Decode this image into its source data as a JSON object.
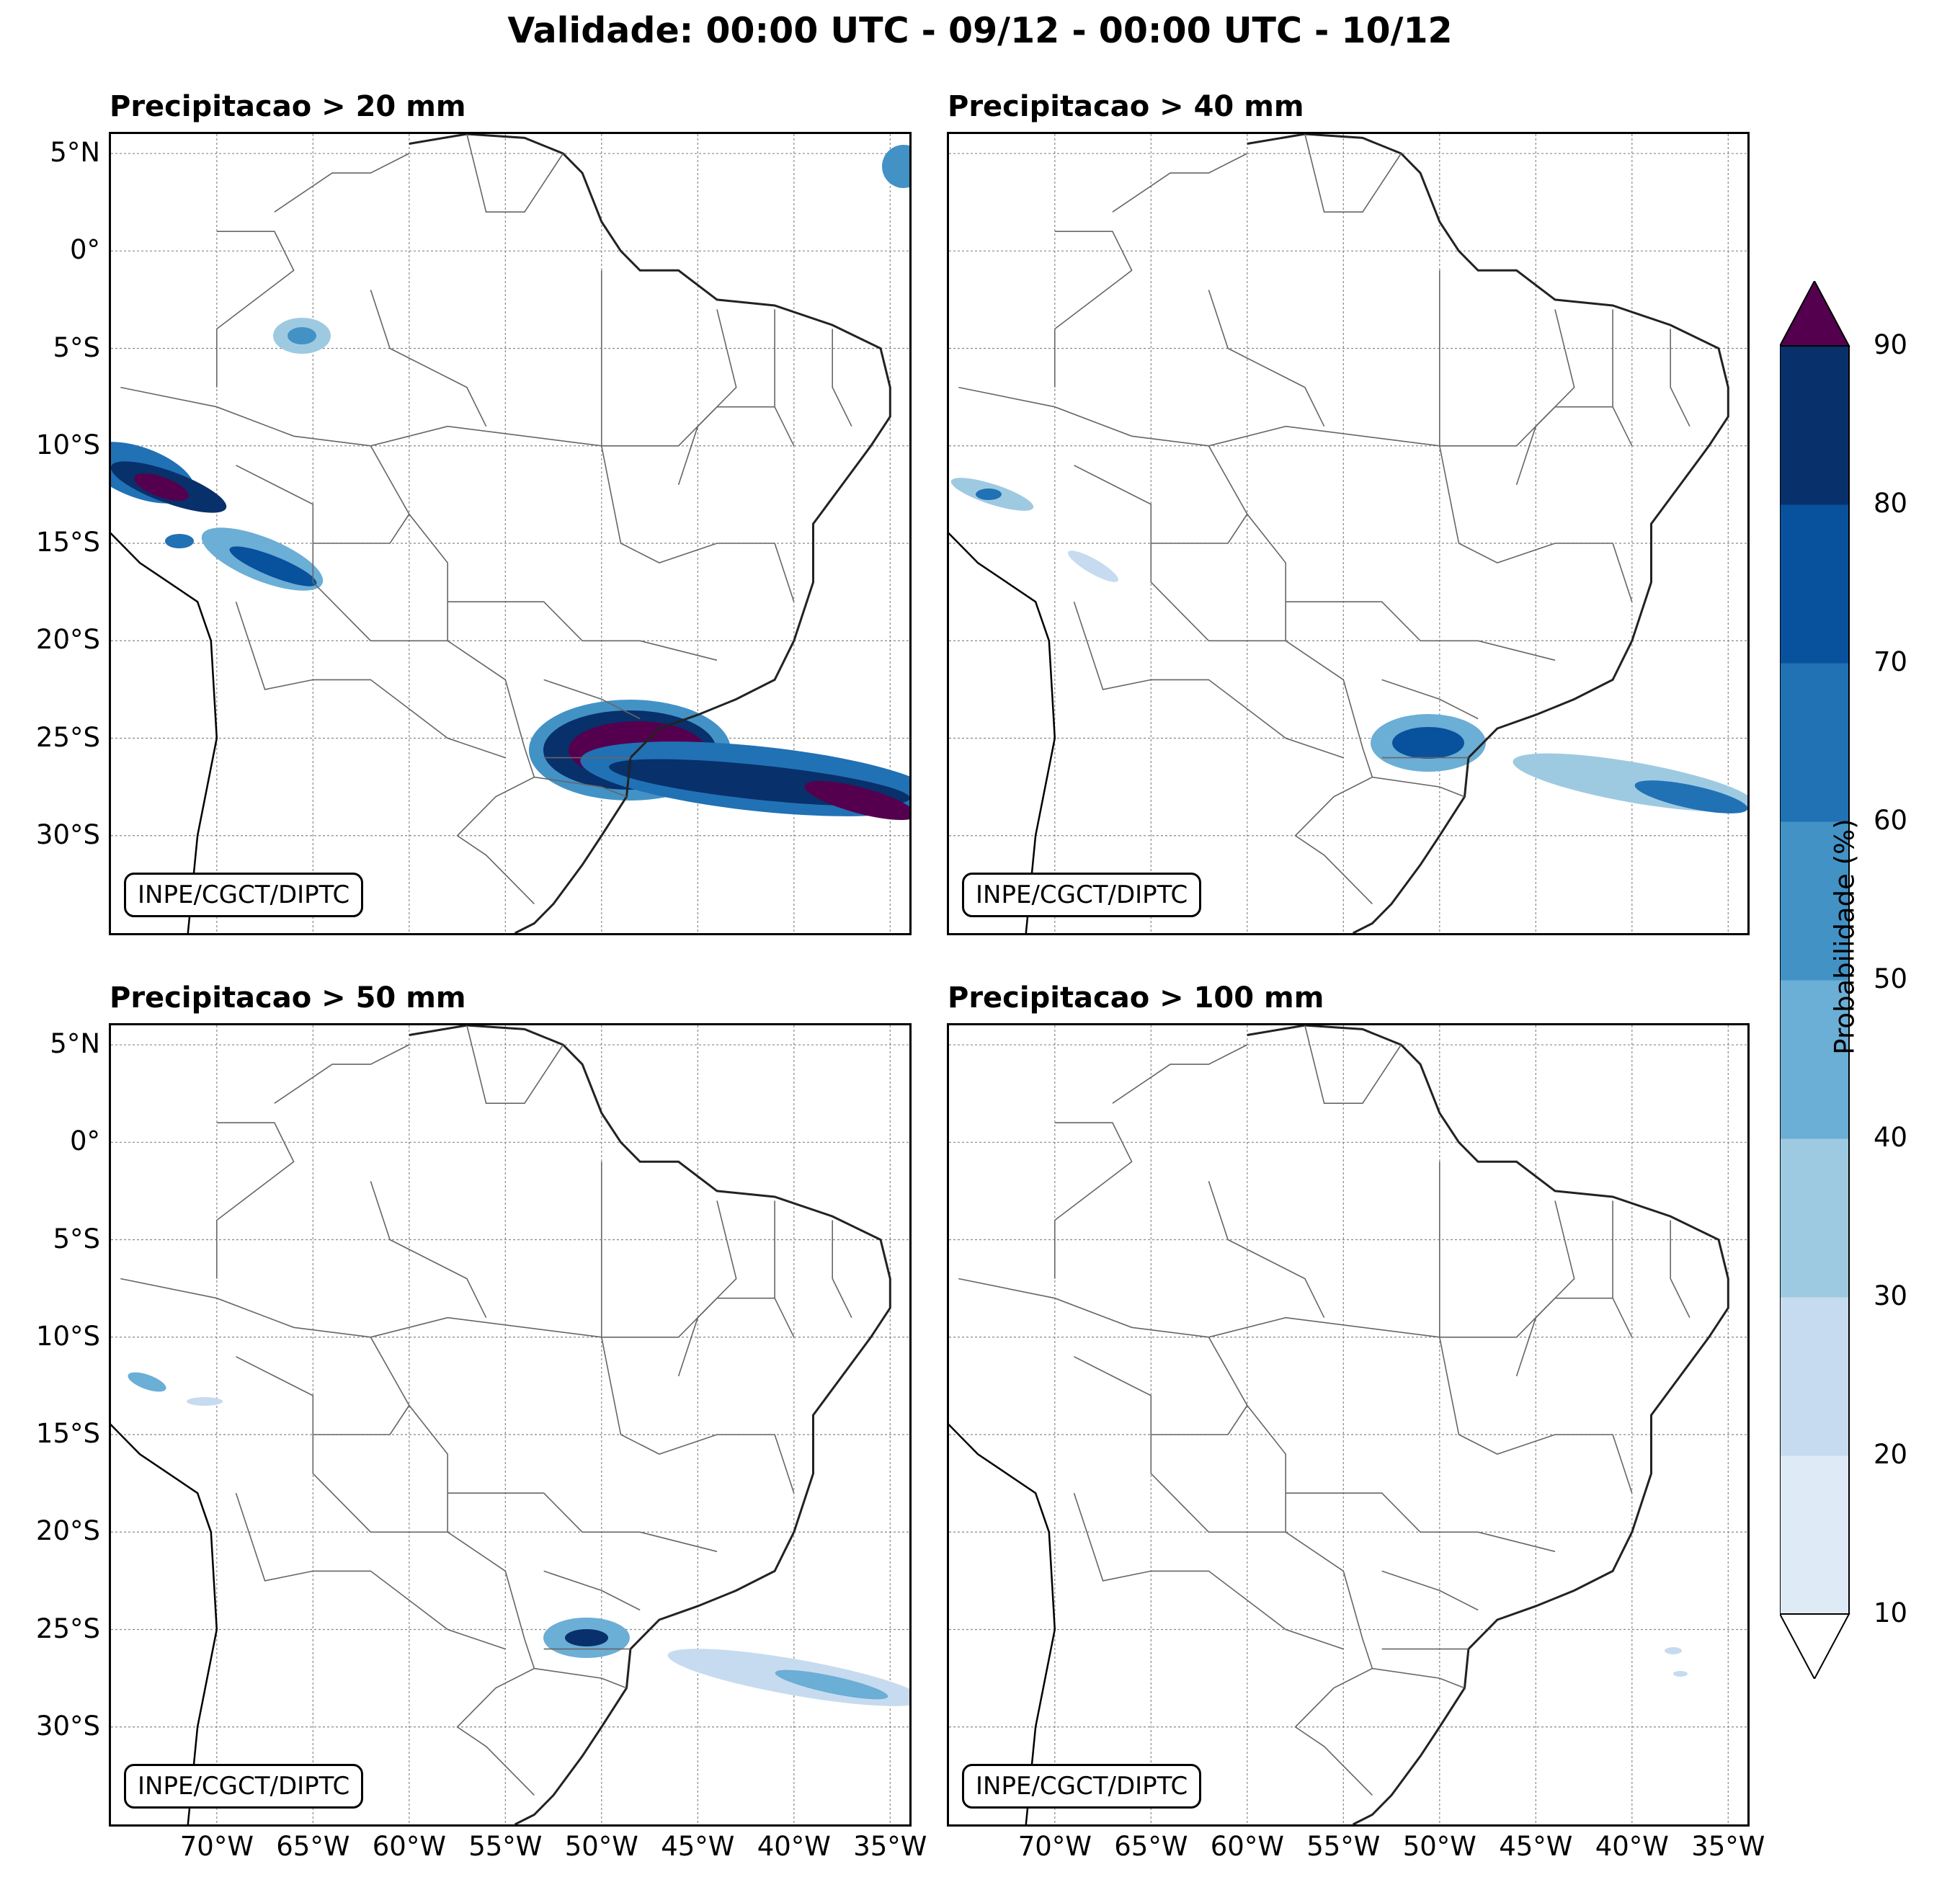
{
  "title": "Validade: 00:00 UTC - 09/12 - 00:00 UTC - 10/12",
  "credit": "INPE/CGCT/DIPTC",
  "panels": [
    {
      "title": "Precipitacao > 20 mm",
      "level": 20
    },
    {
      "title": "Precipitacao > 40 mm",
      "level": 40
    },
    {
      "title": "Precipitacao > 50 mm",
      "level": 50
    },
    {
      "title": "Precipitacao > 100 mm",
      "level": 100
    }
  ],
  "map": {
    "lon_range": [
      -75.5,
      -34
    ],
    "lat_range": [
      -35,
      6
    ],
    "lat_ticks": [
      "5°N",
      "0°",
      "5°S",
      "10°S",
      "15°S",
      "20°S",
      "25°S",
      "30°S"
    ],
    "lat_values": [
      5,
      0,
      -5,
      -10,
      -15,
      -20,
      -25,
      -30
    ],
    "lon_ticks": [
      "70°W",
      "65°W",
      "60°W",
      "55°W",
      "50°W",
      "45°W",
      "40°W",
      "35°W"
    ],
    "lon_values": [
      -70,
      -65,
      -60,
      -55,
      -50,
      -45,
      -40,
      -35
    ],
    "gridlines": true
  },
  "colorbar": {
    "label": "Probabilidade (%)",
    "ticks": [
      "10",
      "20",
      "30",
      "40",
      "50",
      "60",
      "70",
      "80",
      "90"
    ],
    "colors": [
      "#deebf7",
      "#c6dbef",
      "#9ecae1",
      "#6baed6",
      "#4292c6",
      "#2171b5",
      "#08519c",
      "#08306b"
    ],
    "over_color": "#54004f",
    "under_color": "#ffffff",
    "extend": "both"
  }
}
